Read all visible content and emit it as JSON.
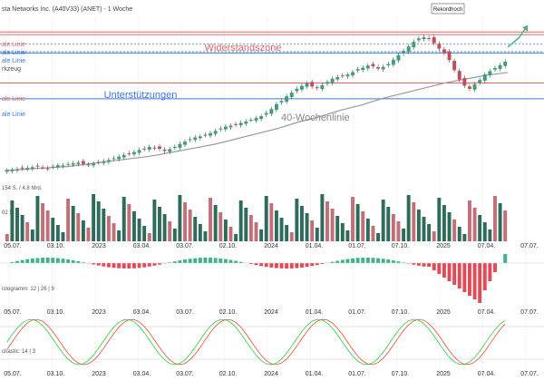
{
  "header": {
    "title": "sta Networks Inc. (A40V33) (ANET) - 1 Woche"
  },
  "annotations": {
    "record": "Rekordhoch",
    "resistance": "Widerstandszone",
    "support": "Unterstützungen",
    "ma40": "40-Wochenlinie",
    "hline": "ale Linie",
    "tool": "rkzeug"
  },
  "indicators": {
    "volume_label": "154 S. / 4,8 Mrd.",
    "volume_sub": "02 S.",
    "macd_label": "istogramm: 12 | 26 | 9",
    "stoch_label": "chastic: 14 | 3"
  },
  "colors": {
    "up": "#3d9e78",
    "down": "#c44d58",
    "vol_up": "#2f6b5a",
    "vol_down": "#c26f78",
    "macd_pos": "#3cb38a",
    "macd_neg": "#e34a57",
    "resistance_line": "#e06666",
    "support_line": "#3c78d8",
    "ma": "#999999",
    "stoch_k": "#2ecc40",
    "stoch_d": "#e74c3c",
    "arrow": "#4caf88"
  },
  "chart_data": {
    "type": "candlestick",
    "x_labels": [
      "05.07.",
      "03.10.",
      "2023",
      "03.04.",
      "03.07.",
      "02.10.",
      "2024",
      "01.04.",
      "01.07.",
      "07.10.",
      "2025",
      "07.04.",
      "07.07."
    ],
    "weekly_close": [
      22,
      22.5,
      23,
      23.5,
      24,
      24.5,
      25,
      24.2,
      23.5,
      25,
      26,
      25.8,
      27,
      27.5,
      28,
      27,
      26.5,
      27.2,
      28.3,
      29.1,
      30,
      31.3,
      32.6,
      33.9,
      34.9,
      36.1,
      37.6,
      38.5,
      40.1,
      39.2,
      38.6,
      37,
      38.3,
      40,
      42.3,
      44.1,
      46,
      47.3,
      48.1,
      49.2,
      50.6,
      52.3,
      54.1,
      55.6,
      56.3,
      57.2,
      58.4,
      59.5,
      60.8,
      62.1,
      63.5,
      66,
      69,
      72.8,
      75.2,
      78.8,
      81.6,
      84.5,
      86.7,
      88.6,
      86.3,
      85,
      87.2,
      89.8,
      92.3,
      93.5,
      94.6,
      95.4,
      97.3,
      99.6,
      100.7,
      102.3,
      101.7,
      100,
      101.3,
      103.5,
      106.8,
      110.3,
      113.5,
      116.9,
      120.5,
      123.1,
      124,
      122.8,
      119.5,
      115.3,
      112,
      106.5,
      98.8,
      91.6,
      86.9,
      84.5,
      88,
      91.3,
      95.5,
      98,
      100.4,
      102.6,
      105.3
    ],
    "ma40_y": [
      22,
      23,
      24,
      25,
      27,
      29,
      31,
      33,
      36,
      39,
      42,
      46,
      50,
      54,
      59,
      63,
      68,
      72,
      77,
      81,
      85,
      89,
      92,
      95,
      97
    ],
    "horizontal_levels": {
      "resistance": [
        128,
        126
      ],
      "support_blue_1": [
        119,
        113
      ],
      "support_blue_2": [
        112
      ],
      "support_red": [
        89
      ],
      "support_blue_3": [
        88
      ]
    },
    "record_high": 133,
    "volume_panel": true,
    "macd_histogram_panel": true,
    "stochastic_panel": true
  }
}
